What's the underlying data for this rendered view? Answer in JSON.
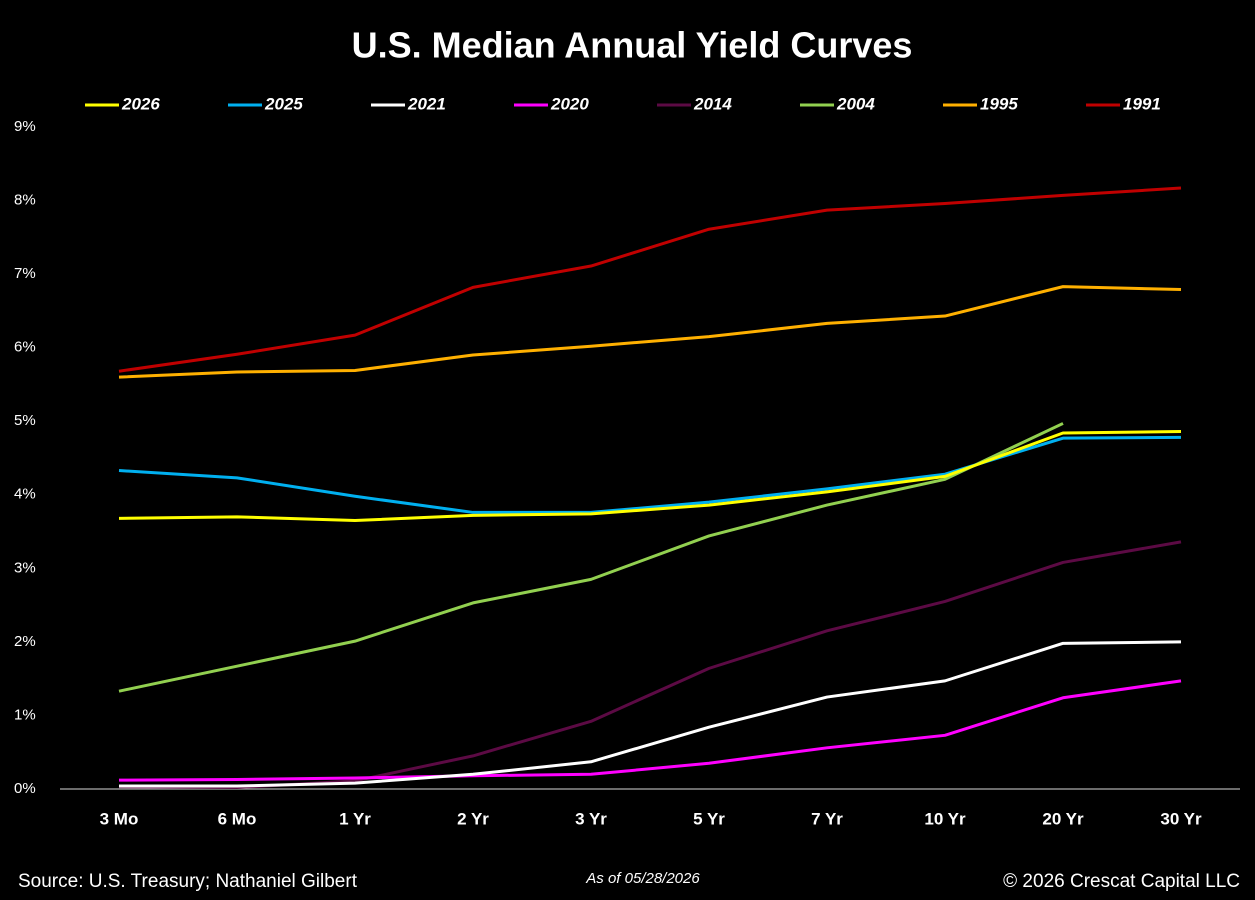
{
  "chart_data": {
    "type": "line",
    "title": "U.S. Median Annual Yield Curves",
    "categories": [
      "3 Mo",
      "6 Mo",
      "1 Yr",
      "2 Yr",
      "3 Yr",
      "5 Yr",
      "7 Yr",
      "10 Yr",
      "20 Yr",
      "30 Yr"
    ],
    "series": [
      {
        "name": "2026",
        "color": "#ffff00",
        "values": [
          3.68,
          3.7,
          3.65,
          3.72,
          3.74,
          3.86,
          4.04,
          4.25,
          4.84,
          4.86
        ]
      },
      {
        "name": "2025",
        "color": "#00b0f0",
        "values": [
          4.33,
          4.23,
          3.98,
          3.76,
          3.76,
          3.9,
          4.08,
          4.28,
          4.77,
          4.78
        ]
      },
      {
        "name": "2021",
        "color": "#ffffff",
        "values": [
          0.04,
          0.04,
          0.08,
          0.2,
          0.37,
          0.84,
          1.25,
          1.47,
          1.98,
          2.0
        ]
      },
      {
        "name": "2020",
        "color": "#ff00ff",
        "values": [
          0.12,
          0.13,
          0.15,
          0.18,
          0.2,
          0.35,
          0.56,
          0.73,
          1.24,
          1.47
        ]
      },
      {
        "name": "2014",
        "color": "#5c0a44",
        "values": [
          0.03,
          0.02,
          0.11,
          0.45,
          0.92,
          1.64,
          2.15,
          2.55,
          3.08,
          3.36
        ]
      },
      {
        "name": "2004",
        "color": "#92d050",
        "values": [
          1.33,
          1.67,
          2.01,
          2.53,
          2.85,
          3.44,
          3.86,
          4.21,
          4.97,
          null
        ]
      },
      {
        "name": "1995",
        "color": "#ffb000",
        "values": [
          5.6,
          5.67,
          5.69,
          5.9,
          6.02,
          6.15,
          6.33,
          6.43,
          6.83,
          6.79
        ]
      },
      {
        "name": "1991",
        "color": "#c00000",
        "values": [
          5.68,
          5.91,
          6.17,
          6.82,
          7.11,
          7.61,
          7.87,
          7.96,
          8.07,
          8.17
        ]
      }
    ],
    "ylim": [
      0,
      9
    ],
    "yticks": [
      {
        "value": 0,
        "label": "0%"
      },
      {
        "value": 1,
        "label": "1%"
      },
      {
        "value": 2,
        "label": "2%"
      },
      {
        "value": 3,
        "label": "3%"
      },
      {
        "value": 4,
        "label": "4%"
      },
      {
        "value": 5,
        "label": "5%"
      },
      {
        "value": 6,
        "label": "6%"
      },
      {
        "value": 7,
        "label": "7%"
      },
      {
        "value": 8,
        "label": "8%"
      },
      {
        "value": 9,
        "label": "9%"
      }
    ],
    "grid": false,
    "legend": "top",
    "source": "Source: U.S. Treasury; Nathaniel Gilbert",
    "date_note": "As of 05/28/2026",
    "copyright": "© 2026 Crescat Capital LLC"
  }
}
